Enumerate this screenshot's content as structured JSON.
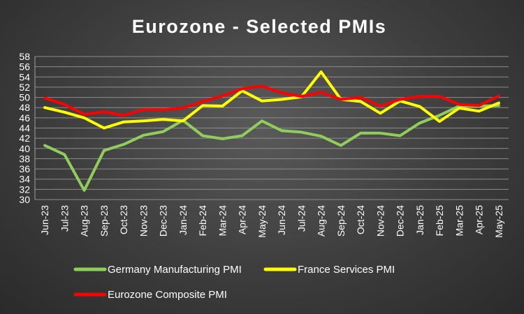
{
  "chart_data": {
    "type": "line",
    "title": "Eurozone - Selected PMIs",
    "xlabel": "",
    "ylabel": "",
    "ylim": [
      30,
      58
    ],
    "y_ticks": [
      30,
      32,
      34,
      36,
      38,
      40,
      42,
      44,
      46,
      48,
      50,
      52,
      54,
      56,
      58
    ],
    "grid": true,
    "legend_position": "bottom",
    "categories": [
      "Jun-23",
      "Jul-23",
      "Aug-23",
      "Sep-23",
      "Oct-23",
      "Nov-23",
      "Dec-23",
      "Jan-24",
      "Feb-24",
      "Mar-24",
      "Apr-24",
      "May-24",
      "Jun-24",
      "Jul-24",
      "Aug-24",
      "Sep-24",
      "Oct-24",
      "Nov-24",
      "Dec-24",
      "Jan-25",
      "Feb-25",
      "Mar-25",
      "Apr-25",
      "May-25"
    ],
    "series": [
      {
        "name": "Germany Manufacturing PMI",
        "color": "#8fce5a",
        "values": [
          40.6,
          38.8,
          31.8,
          39.6,
          40.8,
          42.6,
          43.3,
          45.5,
          42.5,
          41.9,
          42.5,
          45.4,
          43.5,
          43.2,
          42.4,
          40.6,
          43.0,
          43.0,
          42.5,
          45.0,
          46.5,
          48.3,
          48.3,
          48.4
        ]
      },
      {
        "name": "France Services PMI",
        "color": "#ffff00",
        "values": [
          48.0,
          47.1,
          46.0,
          44.0,
          45.2,
          45.4,
          45.7,
          45.4,
          48.4,
          48.3,
          51.3,
          49.3,
          49.6,
          50.1,
          55.0,
          49.6,
          49.2,
          46.9,
          49.3,
          48.2,
          45.3,
          47.9,
          47.3,
          48.9
        ]
      },
      {
        "name": "Eurozone Composite PMI",
        "color": "#ff0000",
        "values": [
          49.9,
          48.6,
          46.7,
          47.2,
          46.5,
          47.6,
          47.6,
          47.9,
          49.2,
          50.3,
          51.7,
          52.2,
          50.9,
          50.2,
          51.0,
          49.6,
          50.0,
          48.3,
          49.6,
          50.2,
          50.2,
          48.6,
          48.4,
          50.3
        ]
      }
    ]
  }
}
